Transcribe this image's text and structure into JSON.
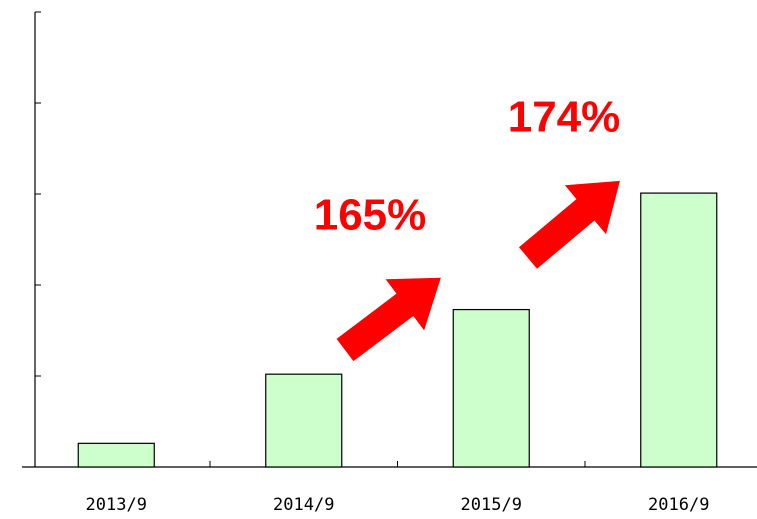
{
  "chart_data": {
    "type": "bar",
    "categories": [
      "2013/9",
      "2014/9",
      "2015/9",
      "2016/9"
    ],
    "values": [
      0.26,
      1.02,
      1.73,
      3.01
    ],
    "color": "#ccffcc",
    "ylim": [
      0,
      5
    ],
    "yticks": [
      0,
      1,
      2,
      3,
      4,
      5
    ],
    "annotations": [
      "165%",
      "174%"
    ]
  }
}
